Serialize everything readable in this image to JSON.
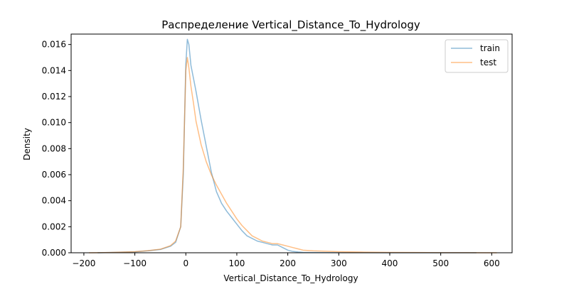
{
  "chart_data": {
    "type": "line",
    "title": "Распределение Vertical_Distance_To_Hydrology",
    "xlabel": "Vertical_Distance_To_Hydrology",
    "ylabel": "Density",
    "xlim": [
      -225,
      640
    ],
    "ylim": [
      0,
      0.0168
    ],
    "x_ticks": [
      -200,
      -100,
      0,
      100,
      200,
      300,
      400,
      500,
      600
    ],
    "x_tick_labels": [
      "−200",
      "−100",
      "0",
      "100",
      "200",
      "300",
      "400",
      "500",
      "600"
    ],
    "y_ticks": [
      0,
      0.002,
      0.004,
      0.006,
      0.008,
      0.01,
      0.012,
      0.014,
      0.016
    ],
    "y_tick_labels": [
      "0.000",
      "0.002",
      "0.004",
      "0.006",
      "0.008",
      "0.010",
      "0.012",
      "0.014",
      "0.016"
    ],
    "grid": false,
    "legend_position": "top-right",
    "series": [
      {
        "name": "train",
        "color": "#1f77b4",
        "x": [
          -173,
          -150,
          -100,
          -75,
          -50,
          -30,
          -20,
          -10,
          -5,
          0,
          3,
          6,
          10,
          15,
          20,
          30,
          40,
          50,
          60,
          70,
          80,
          90,
          100,
          110,
          120,
          130,
          140,
          150,
          160,
          170,
          180,
          190,
          200,
          210,
          220,
          230,
          250,
          300,
          350,
          400,
          450,
          500,
          550,
          570
        ],
        "y": [
          0.0,
          2e-05,
          7e-05,
          0.00015,
          0.00025,
          0.0005,
          0.0008,
          0.002,
          0.006,
          0.0145,
          0.0164,
          0.016,
          0.0144,
          0.0134,
          0.0124,
          0.0102,
          0.0082,
          0.0062,
          0.0047,
          0.0038,
          0.0032,
          0.0027,
          0.0022,
          0.0017,
          0.0013,
          0.0011,
          0.0009,
          0.0008,
          0.0007,
          0.0006,
          0.0006,
          0.0004,
          0.0002,
          0.0001,
          6e-05,
          3e-05,
          2e-05,
          1e-05,
          1e-05,
          0.0,
          0.0,
          0.0,
          0.0,
          0.0
        ]
      },
      {
        "name": "test",
        "color": "#ff7f0e",
        "x": [
          -190,
          -150,
          -100,
          -75,
          -50,
          -30,
          -20,
          -10,
          -5,
          0,
          3,
          6,
          10,
          15,
          20,
          30,
          40,
          50,
          60,
          70,
          80,
          90,
          100,
          110,
          120,
          130,
          140,
          150,
          160,
          170,
          180,
          190,
          200,
          210,
          220,
          230,
          250,
          300,
          350,
          400,
          450,
          500,
          550,
          600,
          610
        ],
        "y": [
          0.0,
          2e-05,
          8e-05,
          0.00016,
          0.00027,
          0.00055,
          0.0009,
          0.002,
          0.0065,
          0.014,
          0.015,
          0.0142,
          0.0128,
          0.0115,
          0.0101,
          0.0083,
          0.007,
          0.006,
          0.0052,
          0.0045,
          0.0038,
          0.0032,
          0.0026,
          0.0021,
          0.0017,
          0.0013,
          0.0011,
          0.0009,
          0.0008,
          0.0007,
          0.0007,
          0.0006,
          0.0005,
          0.0004,
          0.0003,
          0.0002,
          0.00015,
          8e-05,
          5e-05,
          3e-05,
          2e-05,
          1e-05,
          1e-05,
          0.0,
          0.0
        ]
      }
    ]
  }
}
